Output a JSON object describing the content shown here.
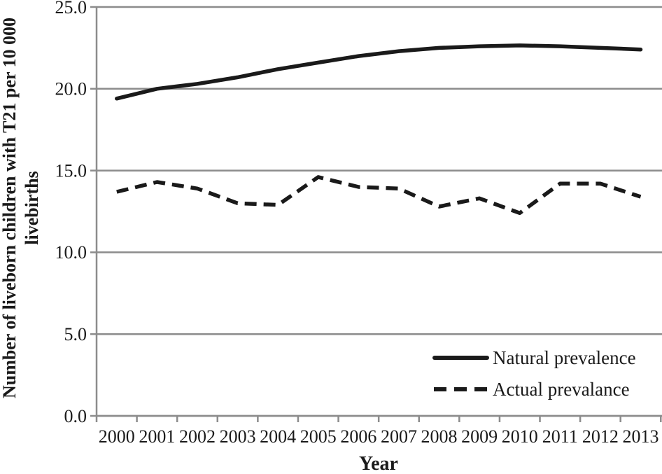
{
  "figure": {
    "y_axis_title_line1": "Number of liveborn children with T21 per 10 000",
    "y_axis_title_line2": "livebirths",
    "x_axis_title": "Year"
  },
  "legend": {
    "position": "inside-bottom-right",
    "items": [
      {
        "label": "Natural prevalence",
        "style": "solid"
      },
      {
        "label": "Actual prevalance",
        "style": "dashed"
      }
    ]
  },
  "colors": {
    "line": "#1a1a1a",
    "grid": "#8c8c8c",
    "text": "#1a1a1a",
    "background": "#ffffff"
  },
  "chart_data": {
    "type": "line",
    "title": "",
    "xlabel": "Year",
    "ylabel": "Number of liveborn children with T21 per 10 000 livebirths",
    "categories": [
      2000,
      2001,
      2002,
      2003,
      2004,
      2005,
      2006,
      2007,
      2008,
      2009,
      2010,
      2011,
      2012,
      2013
    ],
    "series": [
      {
        "name": "Natural prevalence",
        "style": "solid",
        "values": [
          19.4,
          20.0,
          20.3,
          20.7,
          21.2,
          21.6,
          22.0,
          22.3,
          22.5,
          22.6,
          22.65,
          22.6,
          22.5,
          22.4
        ]
      },
      {
        "name": "Actual prevalance",
        "style": "dashed",
        "values": [
          13.7,
          14.3,
          13.9,
          13.0,
          12.9,
          14.6,
          14.0,
          13.9,
          12.8,
          13.3,
          12.4,
          14.2,
          14.2,
          13.4
        ]
      }
    ],
    "ylim": [
      0,
      25
    ],
    "yticks": [
      0,
      5,
      10,
      15,
      20,
      25
    ],
    "ytick_labels": [
      "0.0",
      "5.0",
      "10.0",
      "15.0",
      "20.0",
      "25.0"
    ],
    "grid": "horizontal",
    "legend_position": "inside bottom-right"
  }
}
